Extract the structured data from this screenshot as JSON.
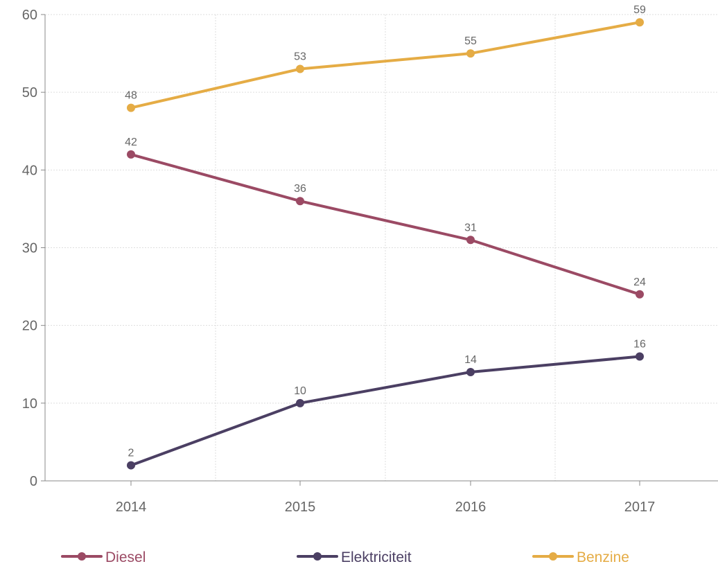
{
  "chart_data": {
    "type": "line",
    "categories": [
      "2014",
      "2015",
      "2016",
      "2017"
    ],
    "series": [
      {
        "name": "Diesel",
        "values": [
          42,
          36,
          31,
          24
        ],
        "color": "#9b4a64"
      },
      {
        "name": "Elektriciteit",
        "values": [
          2,
          10,
          14,
          16
        ],
        "color": "#4b3f63"
      },
      {
        "name": "Benzine",
        "values": [
          48,
          53,
          55,
          59
        ],
        "color": "#e5ac45"
      }
    ],
    "ylim": [
      0,
      60
    ],
    "yticks": [
      0,
      10,
      20,
      30,
      40,
      50,
      60
    ],
    "grid": true,
    "legend": "bottom",
    "title": "",
    "xlabel": "",
    "ylabel": ""
  }
}
